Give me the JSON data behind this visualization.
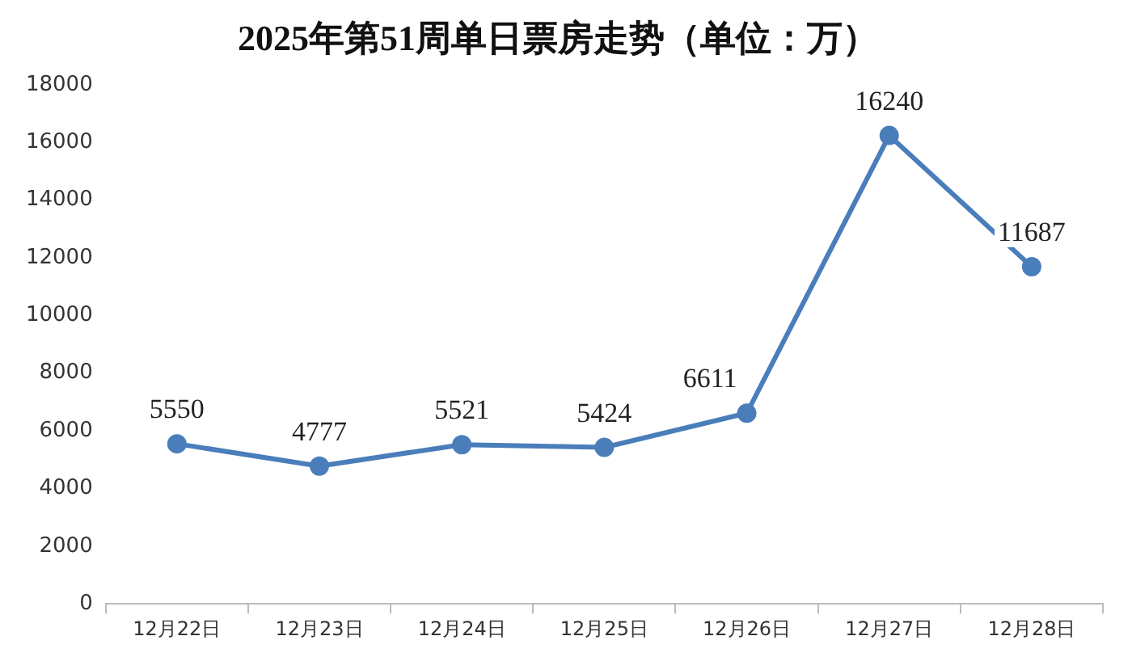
{
  "chart_data": {
    "type": "line",
    "title": "2025年第51周单日票房走势（单位：万）",
    "categories": [
      "12月22日",
      "12月23日",
      "12月24日",
      "12月25日",
      "12月26日",
      "12月27日",
      "12月28日"
    ],
    "series": [
      {
        "color": "#4a7ebb",
        "values": [
          5550,
          4777,
          5521,
          5424,
          6611,
          16240,
          11687
        ]
      }
    ],
    "ylim": [
      0,
      18000
    ],
    "yticks": [
      0,
      2000,
      4000,
      6000,
      8000,
      10000,
      12000,
      14000,
      16000,
      18000
    ],
    "grid": false,
    "legend": false,
    "marker": "circle",
    "line_style": "solid",
    "data_labels": true
  }
}
